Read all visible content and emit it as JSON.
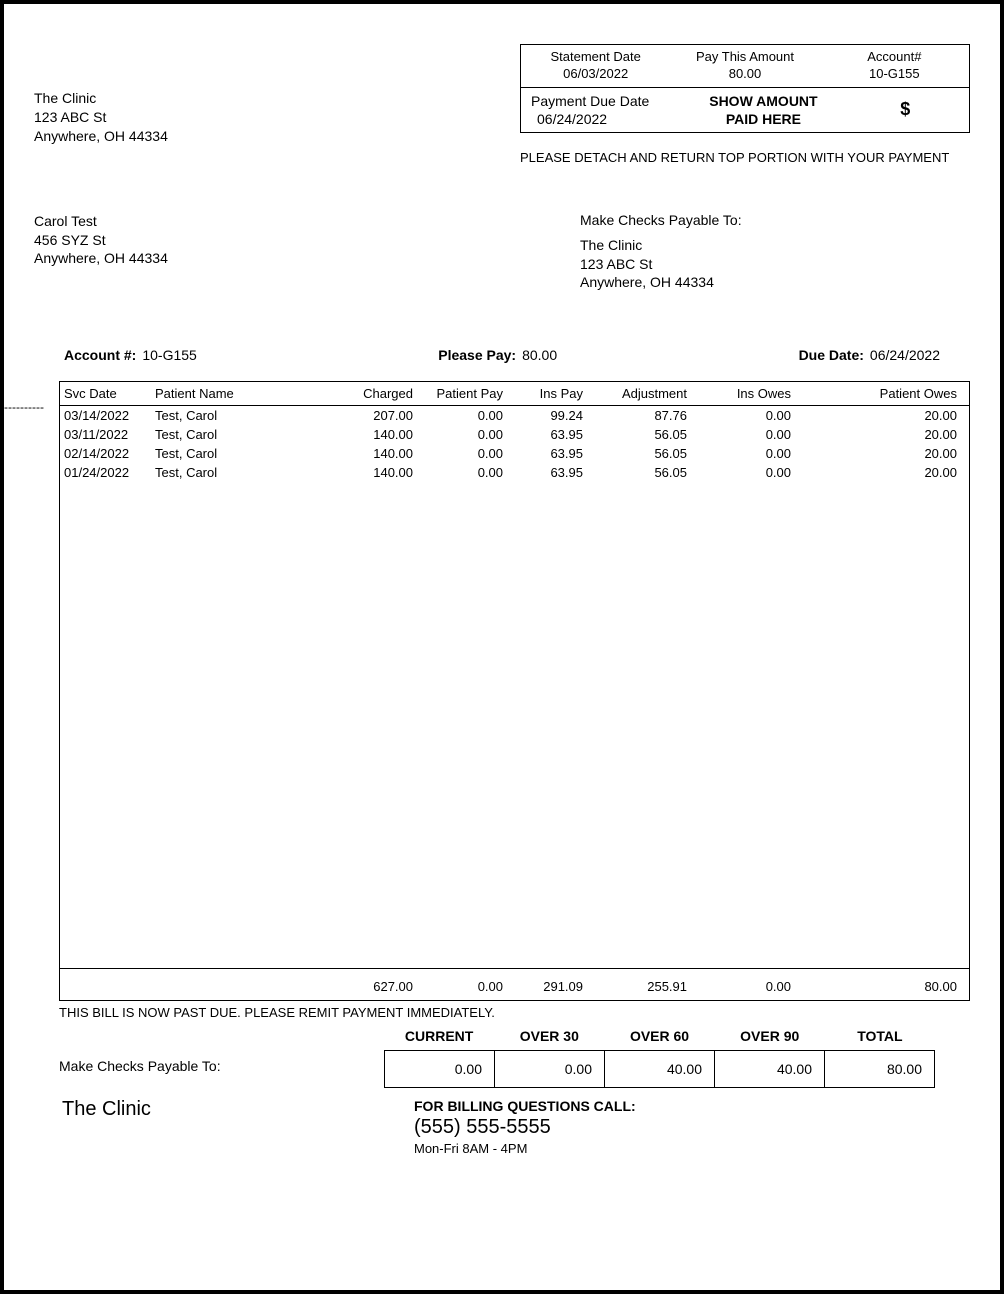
{
  "clinic": {
    "name": "The Clinic",
    "street": "123 ABC St",
    "citystate": "Anywhere, OH 44334"
  },
  "stub": {
    "stmt_date_label": "Statement Date",
    "stmt_date": "06/03/2022",
    "pay_amt_label": "Pay This Amount",
    "pay_amt": "80.00",
    "acct_label": "Account#",
    "acct": "10-G155",
    "due_label": "Payment Due Date",
    "due": "06/24/2022",
    "show_label1": "SHOW AMOUNT",
    "show_label2": "PAID HERE",
    "dollar": "$",
    "detach": "PLEASE DETACH AND RETURN TOP PORTION WITH YOUR PAYMENT"
  },
  "patient": {
    "name": "Carol Test",
    "street": "456 SYZ St",
    "citystate": "Anywhere, OH 44334"
  },
  "payable": {
    "label": "Make Checks Payable To:",
    "name": "The Clinic",
    "street": "123 ABC St",
    "citystate": "Anywhere, OH 44334"
  },
  "summary": {
    "acct_label": "Account #:",
    "acct": "10-G155",
    "pay_label": "Please Pay:",
    "pay": "80.00",
    "due_label": "Due Date:",
    "due": "06/24/2022"
  },
  "dashes": "----------",
  "ledger": {
    "headers": {
      "date": "Svc Date",
      "name": "Patient Name",
      "charged": "Charged",
      "patpay": "Patient Pay",
      "inspay": "Ins Pay",
      "adj": "Adjustment",
      "insowes": "Ins Owes",
      "patowes": "Patient Owes"
    },
    "rows": [
      {
        "date": "03/14/2022",
        "name": "Test, Carol",
        "charged": "207.00",
        "patpay": "0.00",
        "inspay": "99.24",
        "adj": "87.76",
        "insowes": "0.00",
        "patowes": "20.00"
      },
      {
        "date": "03/11/2022",
        "name": "Test, Carol",
        "charged": "140.00",
        "patpay": "0.00",
        "inspay": "63.95",
        "adj": "56.05",
        "insowes": "0.00",
        "patowes": "20.00"
      },
      {
        "date": "02/14/2022",
        "name": "Test, Carol",
        "charged": "140.00",
        "patpay": "0.00",
        "inspay": "63.95",
        "adj": "56.05",
        "insowes": "0.00",
        "patowes": "20.00"
      },
      {
        "date": "01/24/2022",
        "name": "Test, Carol",
        "charged": "140.00",
        "patpay": "0.00",
        "inspay": "63.95",
        "adj": "56.05",
        "insowes": "0.00",
        "patowes": "20.00"
      }
    ],
    "totals": {
      "charged": "627.00",
      "patpay": "0.00",
      "inspay": "291.09",
      "adj": "255.91",
      "insowes": "0.00",
      "patowes": "80.00"
    }
  },
  "pastdue": "THIS BILL IS NOW PAST DUE. PLEASE REMIT PAYMENT IMMEDIATELY.",
  "aging": {
    "headers": {
      "current": "CURRENT",
      "o30": "OVER 30",
      "o60": "OVER 60",
      "o90": "OVER 90",
      "total": "TOTAL"
    },
    "values": {
      "current": "0.00",
      "o30": "0.00",
      "o60": "40.00",
      "o90": "40.00",
      "total": "80.00"
    }
  },
  "bottom_payable": "Make Checks Payable To:",
  "footer": {
    "clinic": "The Clinic",
    "question": "FOR BILLING QUESTIONS CALL:",
    "phone": "(555) 555-5555",
    "hours": "Mon-Fri 8AM - 4PM"
  }
}
